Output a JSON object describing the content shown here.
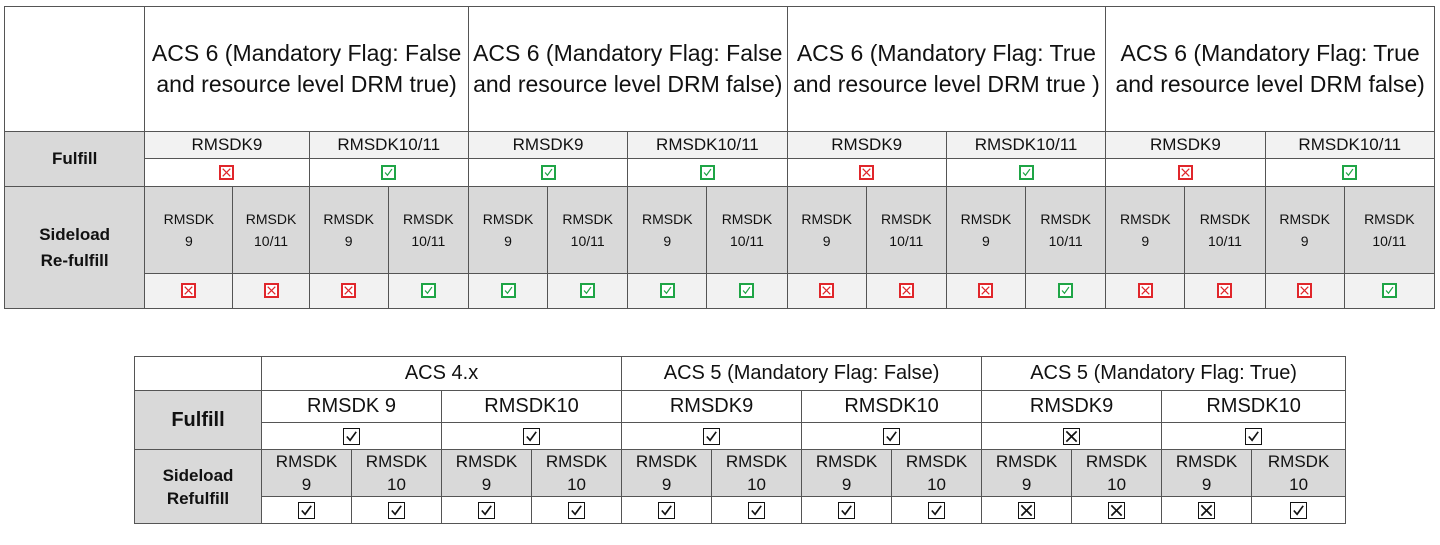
{
  "top_table": {
    "headers": [
      "ACS 6 (Mandatory Flag: False and resource level DRM true)",
      "ACS 6 (Mandatory Flag: False and resource level DRM false)",
      "ACS 6 (Mandatory Flag: True and resource level DRM true )",
      "ACS 6 (Mandatory Flag: True and resource level DRM false)"
    ],
    "fulfill_label": "Fulfill",
    "sideload_label_line1": "Sideload",
    "sideload_label_line2": "Re-fulfill",
    "sdk_labels": [
      "RMSDK9",
      "RMSDK10/11",
      "RMSDK9",
      "RMSDK10/11",
      "RMSDK9",
      "RMSDK10/11",
      "RMSDK9",
      "RMSDK10/11"
    ],
    "fulfill_values": [
      "cross",
      "check",
      "check",
      "check",
      "cross",
      "check",
      "cross",
      "check"
    ],
    "sideload_sdk_line1": "RMSDK",
    "sideload_sdk_line2": [
      "9",
      "10/11",
      "9",
      "10/11",
      "9",
      "10/11",
      "9",
      "10/11",
      "9",
      "10/11",
      "9",
      "10/11",
      "9",
      "10/11",
      "9",
      "10/11"
    ],
    "sideload_values": [
      "cross",
      "cross",
      "cross",
      "check",
      "check",
      "check",
      "check",
      "check",
      "cross",
      "cross",
      "cross",
      "check",
      "cross",
      "cross",
      "cross",
      "check"
    ]
  },
  "bottom_table": {
    "headers": [
      "ACS 4.x",
      "ACS 5 (Mandatory Flag: False)",
      "ACS 5 (Mandatory Flag: True)"
    ],
    "fulfill_label": "Fulfill",
    "sideload_label_line1": "Sideload",
    "sideload_label_line2": "Refulfill",
    "sdk_labels": [
      "RMSDK 9",
      "RMSDK10",
      "RMSDK9",
      "RMSDK10",
      "RMSDK9",
      "RMSDK10"
    ],
    "fulfill_values": [
      "check",
      "check",
      "check",
      "check",
      "cross",
      "check"
    ],
    "sideload_sdk_line1": "RMSDK",
    "sideload_sdk_line2": [
      "9",
      "10",
      "9",
      "10",
      "9",
      "10",
      "9",
      "10",
      "9",
      "10",
      "9",
      "10"
    ],
    "sideload_values": [
      "check",
      "check",
      "check",
      "check",
      "check",
      "check",
      "check",
      "check",
      "cross",
      "cross",
      "cross",
      "check"
    ]
  },
  "colors": {
    "cross_top": "#e0262b",
    "check_top": "#1fa546",
    "mark_bottom": "#111111",
    "label_bg": "#d9d9d9",
    "sub_bg": "#f2f2f2"
  },
  "icons": {
    "check": "check-box-icon",
    "cross": "cross-box-icon"
  }
}
